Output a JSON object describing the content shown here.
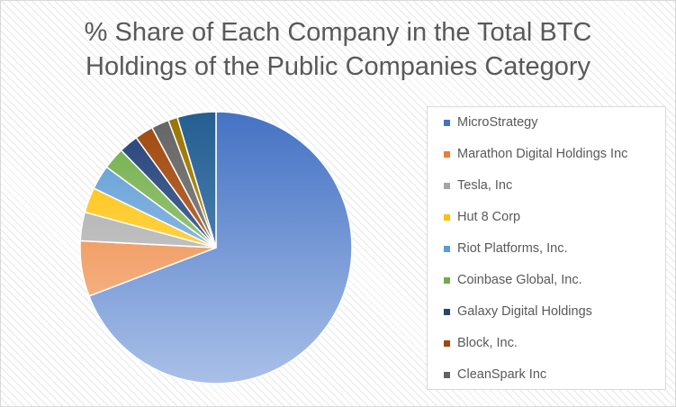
{
  "chart_data": {
    "type": "pie",
    "title_lines": [
      "% Share of Each Company in the Total BTC",
      "Holdings of the Public Companies Category"
    ],
    "legend_position": "right",
    "slices": [
      {
        "name": "MicroStrategy",
        "value": 69.2,
        "color": "#4472C4",
        "light": "#A9C0E8"
      },
      {
        "name": "Marathon Digital Holdings Inc",
        "value": 6.6,
        "color": "#ED7D31",
        "light": "#F7C6A4"
      },
      {
        "name": "Tesla, Inc",
        "value": 3.4,
        "color": "#A5A5A5",
        "light": "#D9D9D9"
      },
      {
        "name": "Hut 8 Corp",
        "value": 3.0,
        "color": "#FFC000",
        "light": "#FFE28A"
      },
      {
        "name": "Riot Platforms, Inc.",
        "value": 2.9,
        "color": "#5B9BD5",
        "light": "#B4D0EC"
      },
      {
        "name": "Coinbase Global, Inc.",
        "value": 2.6,
        "color": "#70AD47",
        "light": "#BCDBA7"
      },
      {
        "name": "Galaxy Digital Holdings",
        "value": 2.3,
        "color": "#264478",
        "light": "#6B86B6"
      },
      {
        "name": "Block, Inc.",
        "value": 2.2,
        "color": "#9E480E",
        "light": "#D68B5A"
      },
      {
        "name": "CleanSpark Inc",
        "value": 2.1,
        "color": "#636363",
        "light": "#A6A6A6"
      },
      {
        "name": "",
        "value": 1.1,
        "color": "#997300",
        "light": "#D6B54A"
      },
      {
        "name": "",
        "value": 4.6,
        "color": "#255E91",
        "light": "#6A9CCB"
      }
    ]
  }
}
